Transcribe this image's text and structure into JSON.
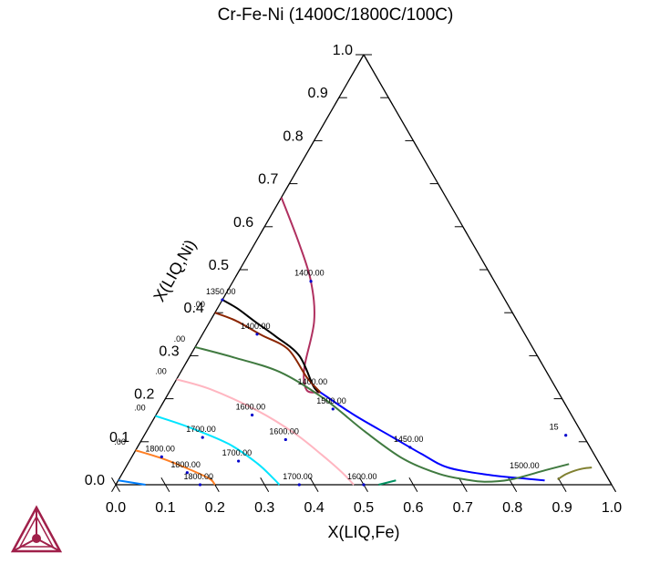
{
  "chart_data": {
    "type": "ternary-isotherm",
    "title": "Cr-Fe-Ni (1400C/1800C/100C)",
    "xlabel": "X(LIQ,Fe)",
    "ylabel": "X(LIQ,Ni)",
    "xlim": [
      0,
      1
    ],
    "ylim": [
      0,
      1
    ],
    "x_ticks": [
      "0.0",
      "0.1",
      "0.2",
      "0.3",
      "0.4",
      "0.5",
      "0.6",
      "0.7",
      "0.8",
      "0.9",
      "1.0"
    ],
    "y_ticks": [
      "0.0",
      "0.1",
      "0.2",
      "0.3",
      "0.4",
      "0.5",
      "0.6",
      "0.7",
      "0.8",
      "0.9",
      "1.0"
    ],
    "series": [
      {
        "color": "#b03060",
        "points": [
          [
            0.0,
            0.668
          ],
          [
            0.09,
            0.56
          ],
          [
            0.157,
            0.473
          ],
          [
            0.21,
            0.38
          ],
          [
            0.245,
            0.27
          ],
          [
            0.275,
            0.22
          ],
          [
            0.305,
            0.215
          ]
        ]
      },
      {
        "color": "#000000",
        "points": [
          [
            0.0,
            0.43
          ],
          [
            0.04,
            0.41
          ],
          [
            0.09,
            0.38
          ],
          [
            0.15,
            0.345
          ],
          [
            0.22,
            0.3
          ],
          [
            0.285,
            0.228
          ],
          [
            0.305,
            0.215
          ]
        ]
      },
      {
        "color": "#8b2500",
        "points": [
          [
            0.0,
            0.4
          ],
          [
            0.05,
            0.382
          ],
          [
            0.12,
            0.348
          ],
          [
            0.19,
            0.315
          ],
          [
            0.26,
            0.25
          ],
          [
            0.305,
            0.215
          ]
        ]
      },
      {
        "color": "#0000ff",
        "points": [
          [
            0.305,
            0.215
          ],
          [
            0.4,
            0.162
          ],
          [
            0.5,
            0.112
          ],
          [
            0.58,
            0.072
          ],
          [
            0.65,
            0.04
          ],
          [
            0.74,
            0.023
          ],
          [
            0.81,
            0.015
          ],
          [
            0.86,
            0.01
          ]
        ]
      },
      {
        "color": "#407a40",
        "points": [
          [
            0.0,
            0.32
          ],
          [
            0.09,
            0.296
          ],
          [
            0.2,
            0.262
          ],
          [
            0.32,
            0.2
          ],
          [
            0.44,
            0.124
          ],
          [
            0.55,
            0.06
          ],
          [
            0.64,
            0.025
          ],
          [
            0.7,
            0.012
          ],
          [
            0.74,
            0.007
          ],
          [
            0.79,
            0.012
          ],
          [
            0.85,
            0.034
          ],
          [
            0.89,
            0.048
          ]
        ]
      },
      {
        "color": "#808030",
        "points": [
          [
            0.94,
            0.04
          ],
          [
            0.925,
            0.038
          ],
          [
            0.91,
            0.033
          ],
          [
            0.895,
            0.024
          ],
          [
            0.885,
            0.012
          ]
        ]
      },
      {
        "color": "#ffb6c1",
        "points": [
          [
            0.0,
            0.245
          ],
          [
            0.08,
            0.222
          ],
          [
            0.2,
            0.172
          ],
          [
            0.3,
            0.12
          ],
          [
            0.38,
            0.07
          ],
          [
            0.44,
            0.03
          ],
          [
            0.48,
            0.0
          ]
        ]
      },
      {
        "color": "#00e5ff",
        "points": [
          [
            0.0,
            0.16
          ],
          [
            0.08,
            0.134
          ],
          [
            0.18,
            0.095
          ],
          [
            0.26,
            0.05
          ],
          [
            0.31,
            0.015
          ],
          [
            0.33,
            0.0
          ]
        ]
      },
      {
        "color": "#ff7f24",
        "points": [
          [
            0.0,
            0.08
          ],
          [
            0.06,
            0.062
          ],
          [
            0.12,
            0.04
          ],
          [
            0.18,
            0.015
          ],
          [
            0.2,
            0.0
          ]
        ]
      },
      {
        "color": "#0080ff",
        "points": [
          [
            0.0,
            0.01
          ],
          [
            0.06,
            0.0
          ]
        ]
      },
      {
        "color": "#009060",
        "points": [
          [
            0.53,
            0.0
          ],
          [
            0.56,
            0.01
          ]
        ]
      }
    ],
    "labels": [
      {
        "text": "1400.00",
        "x": 0.157,
        "y": 0.473,
        "marker": true
      },
      {
        "text": "1350.00",
        "x": 0.0,
        "y": 0.43,
        "marker": true
      },
      {
        "text": ".00",
        "x": -0.01,
        "y": 0.4,
        "marker": false
      },
      {
        "text": "1400.00",
        "x": 0.11,
        "y": 0.35,
        "marker": true
      },
      {
        "text": "1400.00",
        "x": 0.29,
        "y": 0.22,
        "marker": false
      },
      {
        "text": ".00",
        "x": -0.01,
        "y": 0.32,
        "marker": false
      },
      {
        "text": "1500.00",
        "x": 0.35,
        "y": 0.176,
        "marker": true
      },
      {
        "text": ".00",
        "x": -0.01,
        "y": 0.245,
        "marker": false
      },
      {
        "text": "1600.00",
        "x": 0.194,
        "y": 0.162,
        "marker": true
      },
      {
        "text": "1600.00",
        "x": 0.29,
        "y": 0.105,
        "marker": true
      },
      {
        "text": "1450.00",
        "x": 0.55,
        "y": 0.087,
        "marker": true
      },
      {
        "text": ".00",
        "x": -0.01,
        "y": 0.16,
        "marker": false
      },
      {
        "text": "1700.00",
        "x": 0.12,
        "y": 0.11,
        "marker": true
      },
      {
        "text": "1700.00",
        "x": 0.22,
        "y": 0.055,
        "marker": true
      },
      {
        "text": "1700.00",
        "x": 0.37,
        "y": 0.0,
        "marker": true
      },
      {
        "text": "1600.00",
        "x": 0.5,
        "y": 0.0,
        "marker": true
      },
      {
        "text": "1500.00",
        "x": 0.815,
        "y": 0.025,
        "marker": false
      },
      {
        "text": "15",
        "x": 0.85,
        "y": 0.115,
        "marker": true
      },
      {
        "text": ".00",
        "x": -0.01,
        "y": 0.08,
        "marker": false
      },
      {
        "text": "1800.00",
        "x": 0.06,
        "y": 0.065,
        "marker": true
      },
      {
        "text": "1800.00",
        "x": 0.13,
        "y": 0.028,
        "marker": true
      },
      {
        "text": "1800.00",
        "x": 0.17,
        "y": 0.0,
        "marker": true
      }
    ]
  }
}
